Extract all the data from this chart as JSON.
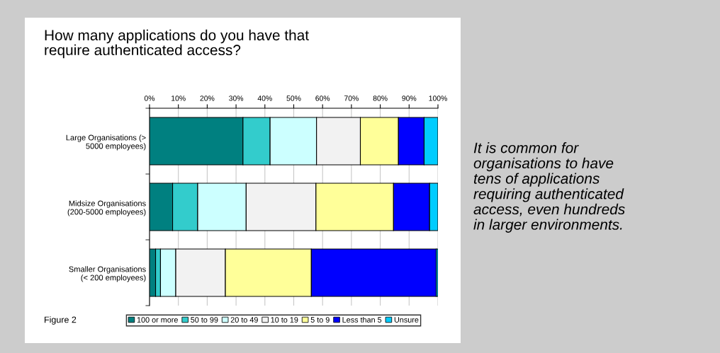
{
  "chart_data": {
    "type": "bar",
    "orientation": "horizontal",
    "stacked": true,
    "title": "How many applications do you have that\nrequire authenticated access?",
    "categories": [
      "Large Organisations (>\n5000 employees)",
      "Midsize Organisations\n(200-5000 employees)",
      "Smaller Organisations\n(< 200 employees)"
    ],
    "series": [
      {
        "name": "100 or more",
        "color": "#008080",
        "values": [
          32.4,
          8.0,
          2.1
        ]
      },
      {
        "name": "50 to 99",
        "color": "#33cccc",
        "values": [
          9.4,
          8.7,
          1.7
        ]
      },
      {
        "name": "20 to 49",
        "color": "#ccffff",
        "values": [
          16.1,
          16.8,
          5.3
        ]
      },
      {
        "name": "10 to 19",
        "color": "#f2f2f2",
        "values": [
          15.2,
          24.2,
          17.2
        ]
      },
      {
        "name": "5 to 9",
        "color": "#ffff99",
        "values": [
          13.2,
          26.9,
          29.8
        ]
      },
      {
        "name": "Less than 5",
        "color": "#0000ff",
        "values": [
          8.9,
          12.5,
          43.3
        ]
      },
      {
        "name": "Unsure",
        "color": "#00ccff",
        "values": [
          4.8,
          2.9,
          0.6
        ]
      }
    ],
    "xlim": [
      0,
      100
    ],
    "xticks": [
      {
        "value": 0,
        "label": "0%"
      },
      {
        "value": 10,
        "label": "10%"
      },
      {
        "value": 20,
        "label": "20%"
      },
      {
        "value": 30,
        "label": "30%"
      },
      {
        "value": 40,
        "label": "40%"
      },
      {
        "value": 50,
        "label": "50%"
      },
      {
        "value": 60,
        "label": "60%"
      },
      {
        "value": 70,
        "label": "70%"
      },
      {
        "value": 80,
        "label": "80%"
      },
      {
        "value": 90,
        "label": "90%"
      },
      {
        "value": 100,
        "label": "100%"
      }
    ],
    "grid": "x",
    "legend": "bottom",
    "annotations": [
      "Figure 2",
      "It is common for\norganisations to have\ntens of applications\nrequiring authenticated\naccess, even hundreds\nin larger environments."
    ]
  }
}
